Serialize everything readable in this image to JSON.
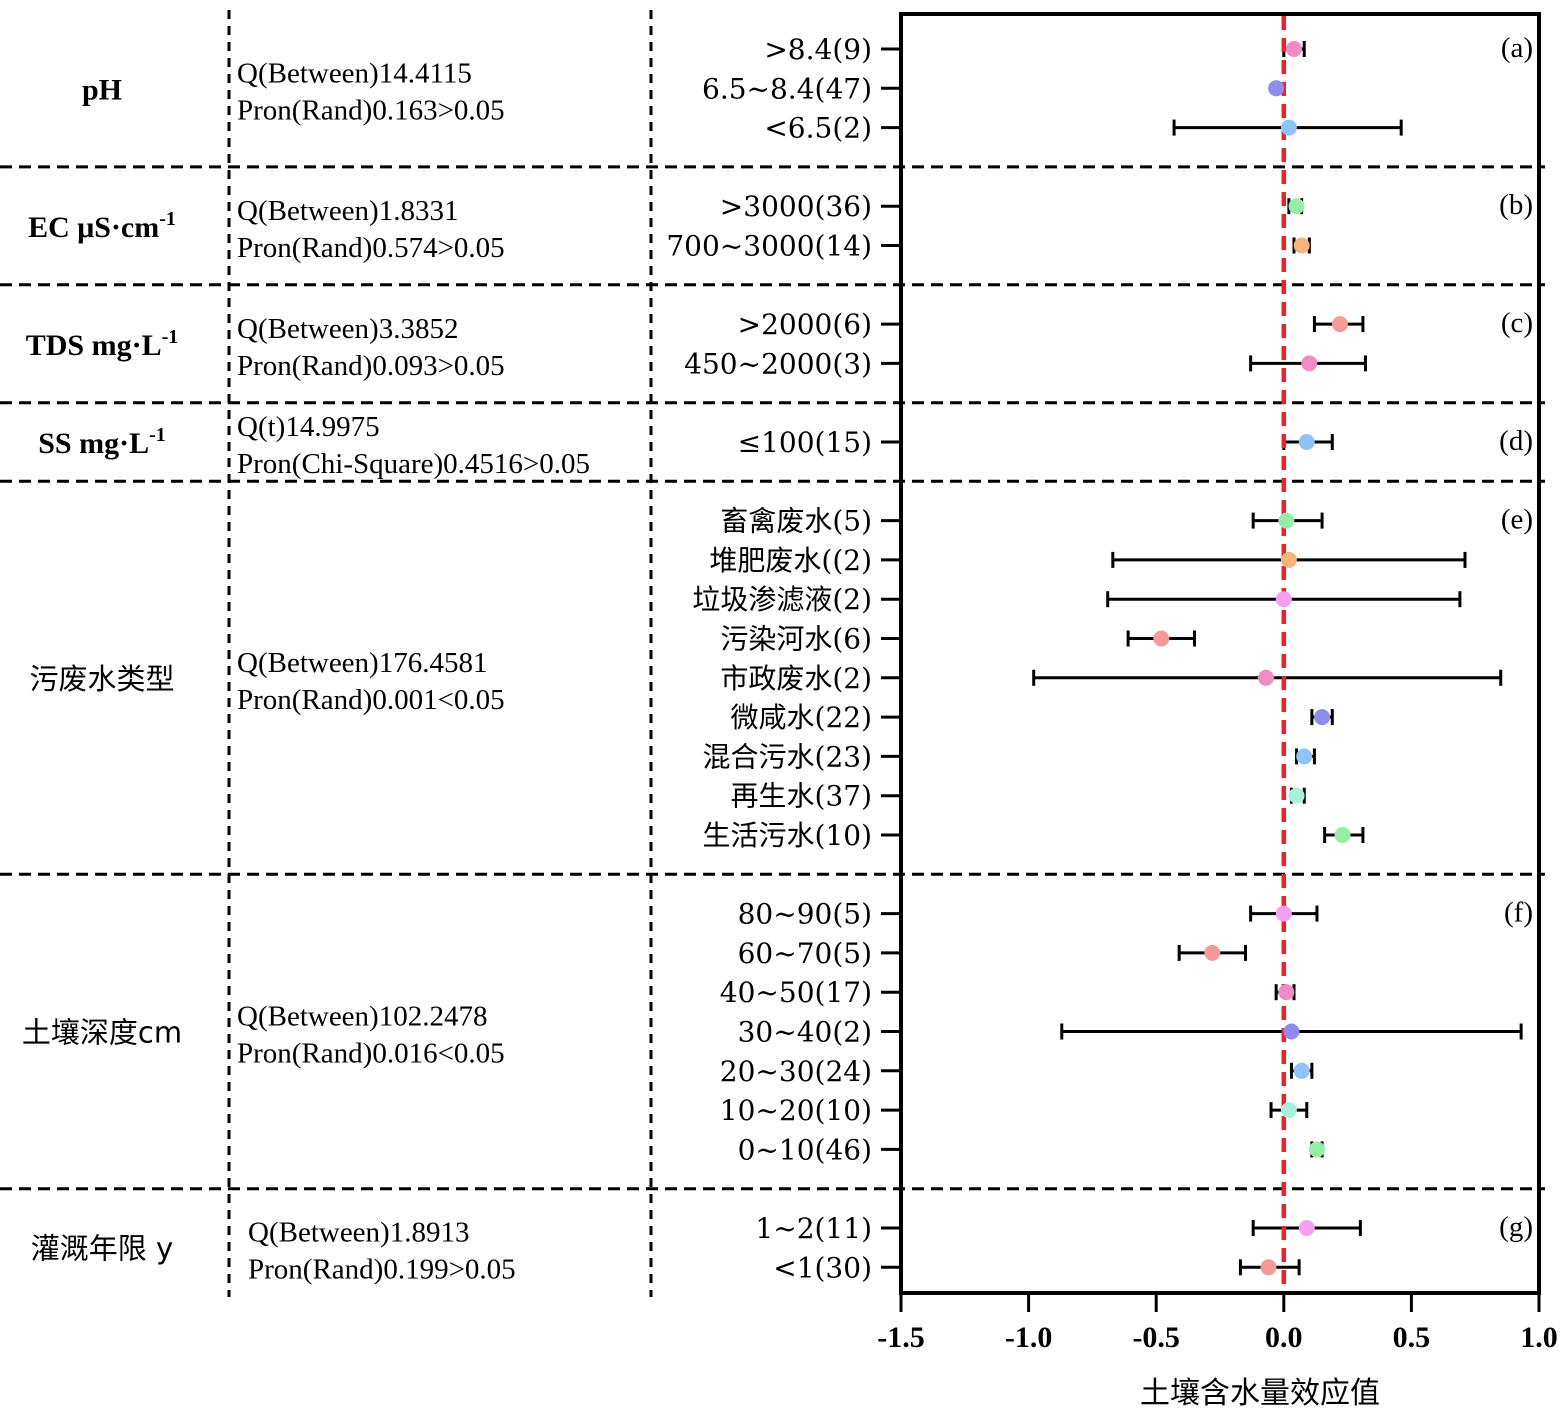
{
  "chart_data": {
    "type": "forest",
    "xlabel": "土壤含水量效应值",
    "xlim": [
      -1.5,
      1.0
    ],
    "xticks": [
      "-1.5",
      "-1.0",
      "-0.5",
      "0.0",
      "0.5",
      "1.0"
    ],
    "reference_line": 0.0,
    "groups": [
      {
        "panel": "(a)",
        "factor": "pH",
        "factor_sup": "",
        "stats": [
          "Q(Between)14.4115",
          "Pron(Rand)0.163>0.05"
        ],
        "items": [
          {
            "label": ">8.4(9)",
            "mean": 0.04,
            "lo": 0.0,
            "hi": 0.08,
            "color": "#ef8cc6"
          },
          {
            "label": "6.5~8.4(47)",
            "mean": -0.03,
            "lo": -0.03,
            "hi": -0.03,
            "color": "#8f8cf0"
          },
          {
            "label": "<6.5(2)",
            "mean": 0.02,
            "lo": -0.43,
            "hi": 0.46,
            "color": "#8fc2f5"
          }
        ]
      },
      {
        "panel": "(b)",
        "factor": "EC μS·cm",
        "factor_sup": "-1",
        "stats": [
          "Q(Between)1.8331",
          "Pron(Rand)0.574>0.05"
        ],
        "items": [
          {
            "label": ">3000(36)",
            "mean": 0.05,
            "lo": 0.02,
            "hi": 0.07,
            "color": "#97eca8"
          },
          {
            "label": "700~3000(14)",
            "mean": 0.07,
            "lo": 0.04,
            "hi": 0.1,
            "color": "#f4b47a"
          }
        ]
      },
      {
        "panel": "(c)",
        "factor": "TDS mg·L",
        "factor_sup": "-1",
        "stats": [
          "Q(Between)3.3852",
          "Pron(Rand)0.093>0.05"
        ],
        "items": [
          {
            "label": ">2000(6)",
            "mean": 0.22,
            "lo": 0.12,
            "hi": 0.31,
            "color": "#f59a98"
          },
          {
            "label": "450~2000(3)",
            "mean": 0.1,
            "lo": -0.13,
            "hi": 0.32,
            "color": "#ef8cc6"
          }
        ]
      },
      {
        "panel": "(d)",
        "factor": "SS mg·L",
        "factor_sup": "-1",
        "stats": [
          "Q(t)14.9975",
          "Pron(Chi-Square)0.4516>0.05"
        ],
        "items": [
          {
            "label": "≤100(15)",
            "mean": 0.09,
            "lo": 0.0,
            "hi": 0.19,
            "color": "#8fc2f5"
          }
        ]
      },
      {
        "panel": "(e)",
        "factor": "污废水类型",
        "factor_sup": "",
        "stats": [
          "Q(Between)176.4581",
          "Pron(Rand)0.001<0.05"
        ],
        "items": [
          {
            "label": "畜禽废水(5)",
            "mean": 0.01,
            "lo": -0.12,
            "hi": 0.15,
            "color": "#97eca8"
          },
          {
            "label": "堆肥废水((2)",
            "mean": 0.02,
            "lo": -0.67,
            "hi": 0.71,
            "color": "#f4b47a"
          },
          {
            "label": "垃圾渗滤液(2)",
            "mean": 0.0,
            "lo": -0.69,
            "hi": 0.69,
            "color": "#f2a0ef"
          },
          {
            "label": "污染河水(6)",
            "mean": -0.48,
            "lo": -0.61,
            "hi": -0.35,
            "color": "#f59a98"
          },
          {
            "label": "市政废水(2)",
            "mean": -0.07,
            "lo": -0.98,
            "hi": 0.85,
            "color": "#ef8cc6"
          },
          {
            "label": "微咸水(22)",
            "mean": 0.15,
            "lo": 0.11,
            "hi": 0.19,
            "color": "#8f8cf0"
          },
          {
            "label": "混合污水(23)",
            "mean": 0.08,
            "lo": 0.05,
            "hi": 0.12,
            "color": "#8fc2f5"
          },
          {
            "label": "再生水(37)",
            "mean": 0.05,
            "lo": 0.03,
            "hi": 0.08,
            "color": "#a6f0dc"
          },
          {
            "label": "生活污水(10)",
            "mean": 0.23,
            "lo": 0.16,
            "hi": 0.31,
            "color": "#97eca8"
          }
        ]
      },
      {
        "panel": "(f)",
        "factor": "土壤深度cm",
        "factor_sup": "",
        "stats": [
          "Q(Between)102.2478",
          "Pron(Rand)0.016<0.05"
        ],
        "items": [
          {
            "label": "80~90(5)",
            "mean": 0.0,
            "lo": -0.13,
            "hi": 0.13,
            "color": "#f2a0ef"
          },
          {
            "label": "60~70(5)",
            "mean": -0.28,
            "lo": -0.41,
            "hi": -0.15,
            "color": "#f59a98"
          },
          {
            "label": "40~50(17)",
            "mean": 0.01,
            "lo": -0.03,
            "hi": 0.04,
            "color": "#ef8cc6"
          },
          {
            "label": "30~40(2)",
            "mean": 0.03,
            "lo": -0.87,
            "hi": 0.93,
            "color": "#8f8cf0"
          },
          {
            "label": "20~30(24)",
            "mean": 0.07,
            "lo": 0.03,
            "hi": 0.11,
            "color": "#8fc2f5"
          },
          {
            "label": "10~20(10)",
            "mean": 0.02,
            "lo": -0.05,
            "hi": 0.09,
            "color": "#a6f0dc"
          },
          {
            "label": "0~10(46)",
            "mean": 0.13,
            "lo": 0.11,
            "hi": 0.15,
            "color": "#97eca8"
          }
        ]
      },
      {
        "panel": "(g)",
        "factor": "灌溉年限 y",
        "factor_sup": "",
        "stats": [
          "Q(Between)1.8913",
          "Pron(Rand)0.199>0.05"
        ],
        "items": [
          {
            "label": "1~2(11)",
            "mean": 0.09,
            "lo": -0.12,
            "hi": 0.3,
            "color": "#f2a0ef"
          },
          {
            "label": "<1(30)",
            "mean": -0.06,
            "lo": -0.17,
            "hi": 0.06,
            "color": "#f59a98"
          }
        ]
      }
    ]
  }
}
